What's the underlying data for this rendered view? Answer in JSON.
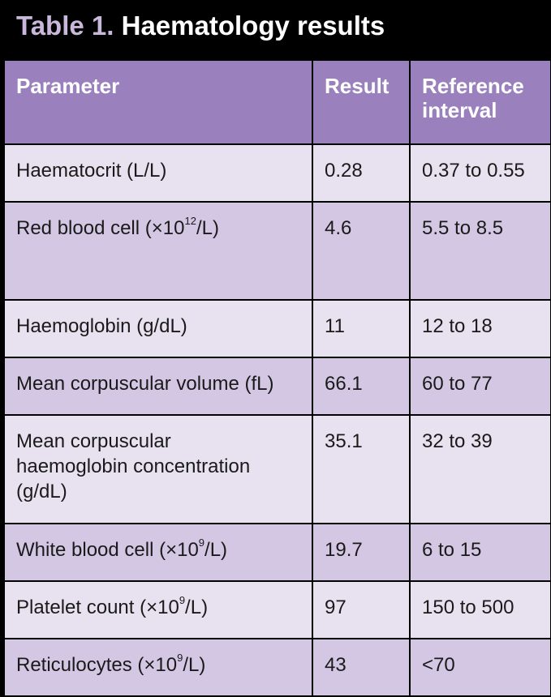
{
  "title": {
    "label": "Table 1.",
    "text": "Haematology results"
  },
  "columns": [
    "Parameter",
    "Result",
    "Reference interval"
  ],
  "header_reference_line1": "Reference",
  "header_reference_line2": "interval",
  "rows": [
    {
      "parameter": "Haematocrit (L/L)",
      "result": "0.28",
      "reference": "0.37 to 0.55"
    },
    {
      "parameter_pre": "Red blood cell  (×10",
      "parameter_sup": "12",
      "parameter_post": "/L)",
      "result": "4.6",
      "reference": "5.5 to 8.5"
    },
    {
      "parameter": "Haemoglobin (g/dL)",
      "result": "11",
      "reference": "12 to 18"
    },
    {
      "parameter": "Mean corpuscular volume (fL)",
      "result": "66.1",
      "reference": "60 to 77"
    },
    {
      "parameter_line1": "Mean corpuscular",
      "parameter_line2": "haemoglobin concentration",
      "parameter_line3": "(g/dL)",
      "result": "35.1",
      "reference": "32 to 39"
    },
    {
      "parameter_pre": "White blood cell (×10",
      "parameter_sup": "9",
      "parameter_post": "/L)",
      "result": "19.7",
      "reference": "6 to 15"
    },
    {
      "parameter_pre": "Platelet count (×10",
      "parameter_sup": "9",
      "parameter_post": "/L)",
      "result": "97",
      "reference": "150 to 500"
    },
    {
      "parameter_pre": "Reticulocytes  (×10",
      "parameter_sup": "9",
      "parameter_post": "/L)",
      "result": " 43",
      "reference": "<70"
    }
  ],
  "colors": {
    "background": "#000000",
    "header": "#9a81bd",
    "row_light": "#e8e2f0",
    "row_dark": "#d3c7e4",
    "title_label": "#c9b8dc"
  }
}
